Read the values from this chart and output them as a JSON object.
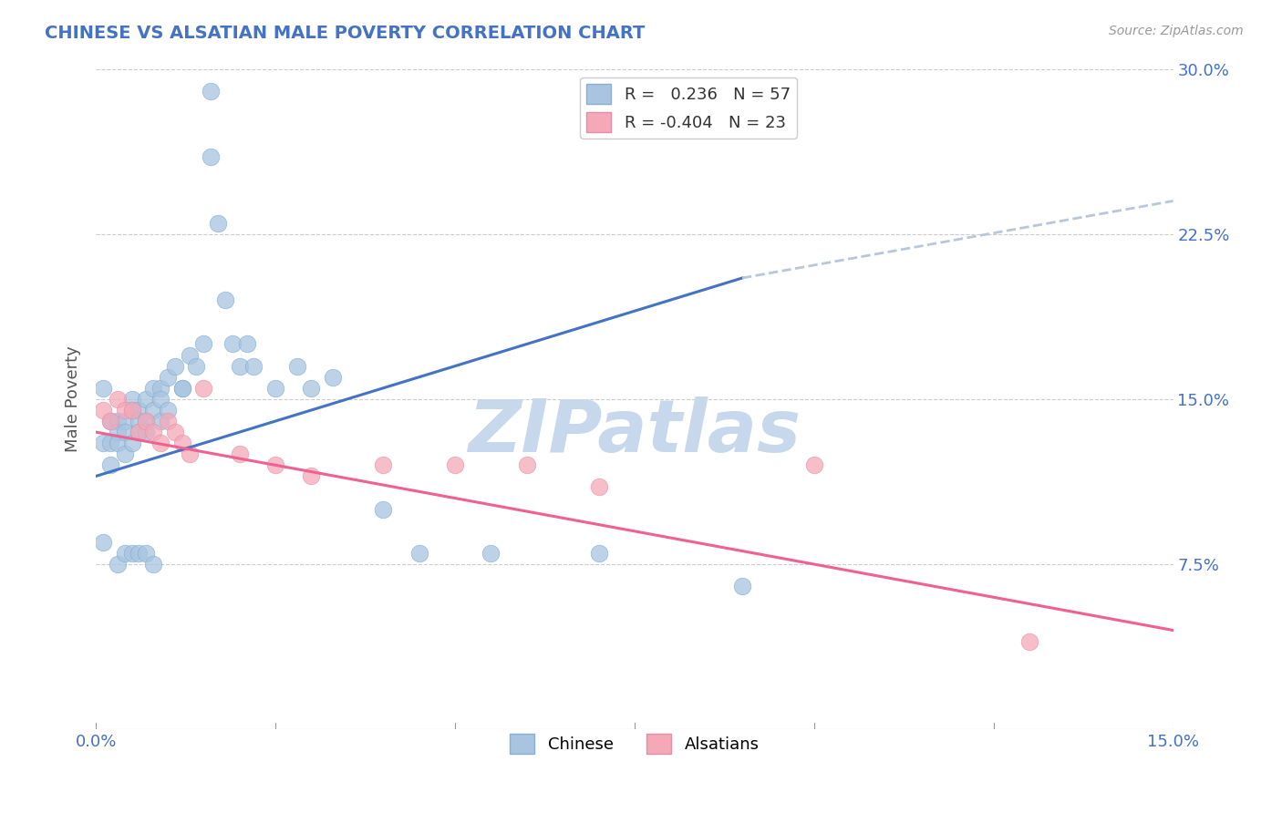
{
  "title": "CHINESE VS ALSATIAN MALE POVERTY CORRELATION CHART",
  "source": "Source: ZipAtlas.com",
  "ylabel": "Male Poverty",
  "xlim": [
    0.0,
    0.15
  ],
  "ylim": [
    0.0,
    0.3
  ],
  "ytick_labels": [
    "7.5%",
    "15.0%",
    "22.5%",
    "30.0%"
  ],
  "ytick_values": [
    0.075,
    0.15,
    0.225,
    0.3
  ],
  "chinese_R": 0.236,
  "chinese_N": 57,
  "alsatian_R": -0.404,
  "alsatian_N": 23,
  "chinese_color": "#a8c4e0",
  "alsatian_color": "#f4a8b8",
  "chinese_line_color": "#4472c4",
  "alsatian_line_color": "#f06090",
  "regression_ext_color": "#b8c8d8",
  "watermark_color": "#c8d8ec",
  "watermark_text": "ZIPatlas",
  "background_color": "#ffffff",
  "chinese_x": [
    0.001,
    0.001,
    0.001,
    0.002,
    0.002,
    0.002,
    0.003,
    0.003,
    0.003,
    0.003,
    0.004,
    0.004,
    0.004,
    0.004,
    0.005,
    0.005,
    0.005,
    0.005,
    0.006,
    0.006,
    0.006,
    0.006,
    0.007,
    0.007,
    0.007,
    0.007,
    0.008,
    0.008,
    0.008,
    0.009,
    0.009,
    0.009,
    0.01,
    0.01,
    0.011,
    0.012,
    0.012,
    0.013,
    0.014,
    0.015,
    0.016,
    0.016,
    0.017,
    0.018,
    0.019,
    0.02,
    0.021,
    0.022,
    0.025,
    0.028,
    0.03,
    0.033,
    0.04,
    0.045,
    0.055,
    0.07,
    0.09
  ],
  "chinese_y": [
    0.155,
    0.13,
    0.085,
    0.14,
    0.13,
    0.12,
    0.14,
    0.135,
    0.13,
    0.075,
    0.14,
    0.135,
    0.125,
    0.08,
    0.15,
    0.145,
    0.13,
    0.08,
    0.145,
    0.14,
    0.135,
    0.08,
    0.15,
    0.14,
    0.135,
    0.08,
    0.155,
    0.145,
    0.075,
    0.155,
    0.15,
    0.14,
    0.16,
    0.145,
    0.165,
    0.155,
    0.155,
    0.17,
    0.165,
    0.175,
    0.26,
    0.29,
    0.23,
    0.195,
    0.175,
    0.165,
    0.175,
    0.165,
    0.155,
    0.165,
    0.155,
    0.16,
    0.1,
    0.08,
    0.08,
    0.08,
    0.065
  ],
  "alsatian_x": [
    0.001,
    0.002,
    0.003,
    0.004,
    0.005,
    0.006,
    0.007,
    0.008,
    0.009,
    0.01,
    0.011,
    0.012,
    0.013,
    0.015,
    0.02,
    0.025,
    0.03,
    0.04,
    0.05,
    0.06,
    0.07,
    0.1,
    0.13
  ],
  "alsatian_y": [
    0.145,
    0.14,
    0.15,
    0.145,
    0.145,
    0.135,
    0.14,
    0.135,
    0.13,
    0.14,
    0.135,
    0.13,
    0.125,
    0.155,
    0.125,
    0.12,
    0.115,
    0.12,
    0.12,
    0.12,
    0.11,
    0.12,
    0.04
  ]
}
